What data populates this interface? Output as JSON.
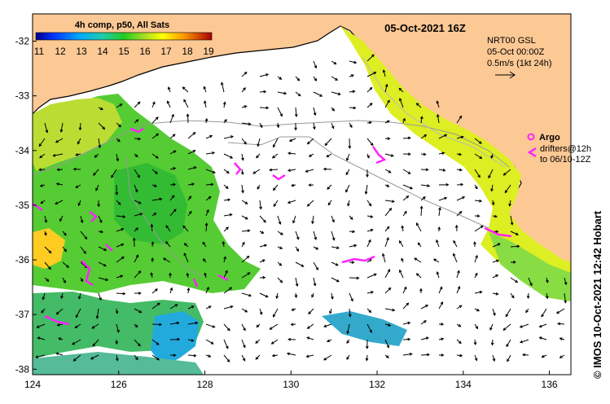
{
  "title": "05-Oct-2021 16Z",
  "colorbar": {
    "title": "4h comp, p50, All Sats",
    "ticks": [
      "11",
      "12",
      "13",
      "14",
      "15",
      "16",
      "17",
      "18",
      "19"
    ]
  },
  "info": {
    "line1": "NRT00 GSL",
    "line2": "05-Oct 00:00Z",
    "line3": "0.5m/s (1kt 24h)"
  },
  "legend": {
    "argo_label": "Argo",
    "drifters_line1": "drifters@12h",
    "drifters_line2": "to 06/10-12Z"
  },
  "credit": "© IMOS 10-Oct-2021 12:42 Hobart",
  "axes": {
    "x_ticks": [
      "124",
      "126",
      "128",
      "130",
      "132",
      "134",
      "136"
    ],
    "y_ticks": [
      "-32",
      "-33",
      "-34",
      "-35",
      "-36",
      "-37",
      "-38"
    ]
  },
  "colors": {
    "land": "#fcc894",
    "sea_no_data": "#ffffff",
    "drifters": "#ff22ff",
    "coast_line": "#000000",
    "isobath": "#999999"
  }
}
